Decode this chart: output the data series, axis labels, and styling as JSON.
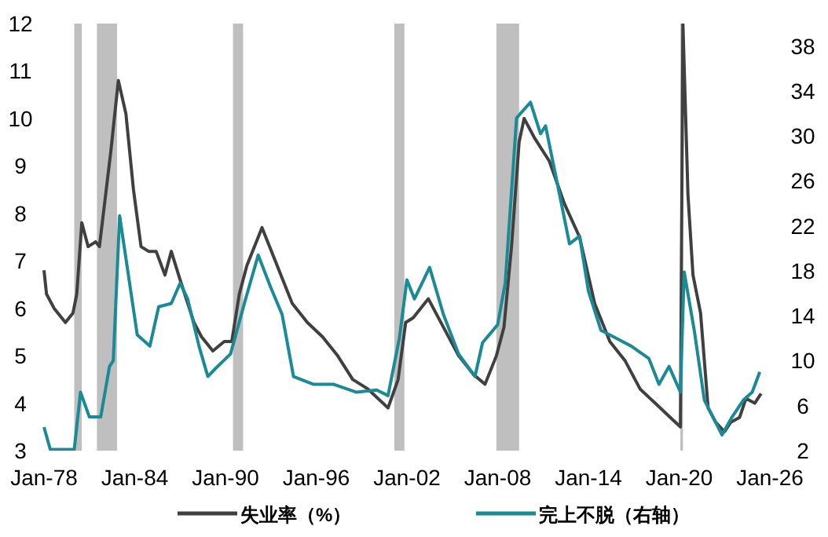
{
  "chart_data": {
    "type": "line",
    "legend": "bottom",
    "grid": false,
    "marker": "none",
    "line_style": "solid",
    "xlim": [
      "1978-01",
      "2026-01"
    ],
    "xticks": [
      {
        "value": "1978-01",
        "label": "Jan-78"
      },
      {
        "value": "1984-01",
        "label": "Jan-84"
      },
      {
        "value": "1990-01",
        "label": "Jan-90"
      },
      {
        "value": "1996-01",
        "label": "Jan-96"
      },
      {
        "value": "2002-01",
        "label": "Jan-02"
      },
      {
        "value": "2008-01",
        "label": "Jan-08"
      },
      {
        "value": "2014-01",
        "label": "Jan-14"
      },
      {
        "value": "2020-01",
        "label": "Jan-20"
      },
      {
        "value": "2026-01",
        "label": "Jan-26"
      }
    ],
    "ylim": [
      3,
      12
    ],
    "yticks": [
      3,
      4,
      5,
      6,
      7,
      8,
      9,
      10,
      11,
      12
    ],
    "y2lim": [
      2,
      40
    ],
    "y2ticks": [
      2,
      6,
      10,
      14,
      18,
      22,
      26,
      30,
      34,
      38
    ],
    "bands": [
      {
        "axis": "x",
        "from": "1980-01",
        "to": "1980-07",
        "color": "#bfbfbf"
      },
      {
        "axis": "x",
        "from": "1981-07",
        "to": "1982-11",
        "color": "#bfbfbf"
      },
      {
        "axis": "x",
        "from": "1990-07",
        "to": "1991-03",
        "color": "#bfbfbf"
      },
      {
        "axis": "x",
        "from": "2001-03",
        "to": "2001-11",
        "color": "#bfbfbf"
      },
      {
        "axis": "x",
        "from": "2007-12",
        "to": "2009-06",
        "color": "#bfbfbf"
      },
      {
        "axis": "x",
        "from": "2020-02",
        "to": "2020-04",
        "color": "#bfbfbf"
      }
    ],
    "series": [
      {
        "name": "失业率（%）",
        "color": "#404040",
        "x": [
          "1978-01",
          "1978-03",
          "1978-09",
          "1979-06",
          "1979-12",
          "1980-03",
          "1980-07",
          "1980-12",
          "1981-06",
          "1981-09",
          "1982-06",
          "1982-12",
          "1983-06",
          "1983-12",
          "1984-06",
          "1984-12",
          "1985-06",
          "1986-01",
          "1986-06",
          "1987-01",
          "1987-12",
          "1988-06",
          "1989-03",
          "1989-12",
          "1990-06",
          "1990-12",
          "1991-06",
          "1992-06",
          "1992-12",
          "1993-06",
          "1994-06",
          "1995-06",
          "1996-06",
          "1997-06",
          "1998-06",
          "1999-06",
          "2000-06",
          "2000-10",
          "2001-06",
          "2001-12",
          "2002-06",
          "2003-06",
          "2004-06",
          "2005-06",
          "2006-06",
          "2007-03",
          "2007-12",
          "2008-06",
          "2008-12",
          "2009-06",
          "2009-10",
          "2010-06",
          "2011-06",
          "2012-06",
          "2013-06",
          "2014-06",
          "2015-06",
          "2016-06",
          "2017-06",
          "2018-06",
          "2019-06",
          "2020-02",
          "2020-04",
          "2020-08",
          "2020-12",
          "2021-06",
          "2021-12",
          "2022-06",
          "2023-01",
          "2023-06",
          "2024-01",
          "2024-06",
          "2025-01",
          "2025-06"
        ],
        "values": [
          6.8,
          6.3,
          6.0,
          5.7,
          5.9,
          6.3,
          7.8,
          7.3,
          7.4,
          7.3,
          9.3,
          10.8,
          10.1,
          8.5,
          7.3,
          7.2,
          7.2,
          6.7,
          7.2,
          6.6,
          5.7,
          5.4,
          5.1,
          5.3,
          5.3,
          6.3,
          6.9,
          7.7,
          7.3,
          6.9,
          6.1,
          5.7,
          5.4,
          5.0,
          4.5,
          4.3,
          4.0,
          3.9,
          4.5,
          5.7,
          5.8,
          6.2,
          5.6,
          5.0,
          4.6,
          4.4,
          5.0,
          5.6,
          7.3,
          9.5,
          10.0,
          9.6,
          9.1,
          8.2,
          7.5,
          6.1,
          5.3,
          4.9,
          4.3,
          4.0,
          3.7,
          3.5,
          12,
          8.4,
          6.7,
          5.9,
          3.9,
          3.6,
          3.4,
          3.6,
          3.7,
          4.1,
          4.0,
          4.2
        ]
      },
      {
        "name": "完上不脱（右轴）",
        "color": "#1a8a96",
        "axis": "y2",
        "x": [
          "1978-01",
          "1978-06",
          "1980-01",
          "1980-06",
          "1981-01",
          "1981-10",
          "1982-05",
          "1982-08",
          "1983-01",
          "1983-08",
          "1984-03",
          "1985-01",
          "1985-08",
          "1986-06",
          "1987-01",
          "1987-07",
          "1988-04",
          "1988-11",
          "1989-05",
          "1990-05",
          "1991-05",
          "1992-03",
          "1993-01",
          "1993-10",
          "1994-07",
          "1995-11",
          "1997-03",
          "1998-09",
          "2000-01",
          "2000-10",
          "2001-07",
          "2002-01",
          "2002-07",
          "2003-07",
          "2004-06",
          "2005-06",
          "2006-07",
          "2007-01",
          "2008-01",
          "2008-07",
          "2009-04",
          "2010-03",
          "2010-11",
          "2011-03",
          "2012-03",
          "2012-10",
          "2013-06",
          "2014-01",
          "2014-11",
          "2015-11",
          "2016-11",
          "2018-01",
          "2018-09",
          "2019-05",
          "2020-02",
          "2020-05",
          "2021-01",
          "2021-09",
          "2022-11",
          "2023-07",
          "2024-04",
          "2024-11",
          "2025-05"
        ],
        "values": [
          4.1,
          2.1,
          2.1,
          7.2,
          5,
          5,
          9.5,
          10,
          22.9,
          17.6,
          12.3,
          11.3,
          14.8,
          15.1,
          16.9,
          15.5,
          11.3,
          8.6,
          9.3,
          10.6,
          15.5,
          19.4,
          16.5,
          14.1,
          8.6,
          7.9,
          7.9,
          7.2,
          7.4,
          6.9,
          12,
          17.2,
          15.5,
          18.3,
          14.1,
          10.6,
          8.6,
          11.6,
          13.2,
          16.9,
          31.6,
          33,
          30.2,
          30.9,
          24.3,
          20.4,
          21.1,
          16.2,
          12.7,
          12,
          11.3,
          10.2,
          7.9,
          9.5,
          7.2,
          17.9,
          12.7,
          6.5,
          3.4,
          5,
          6.5,
          7.2,
          9
        ]
      }
    ]
  }
}
